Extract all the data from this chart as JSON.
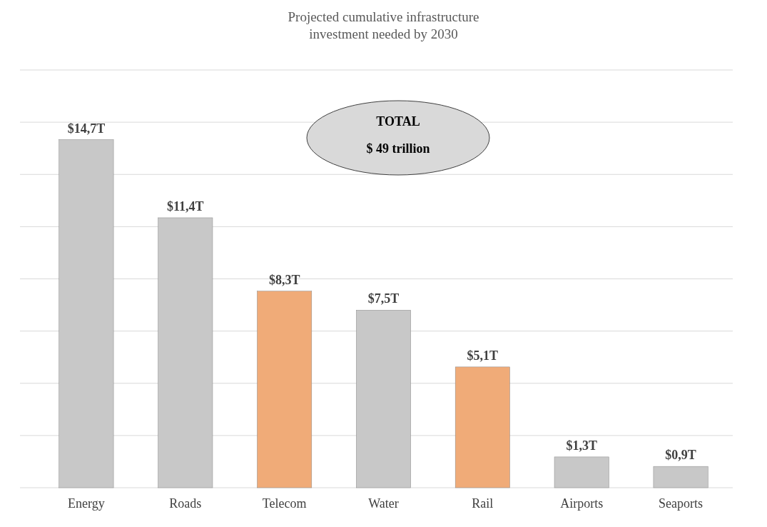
{
  "chart_data": {
    "type": "bar",
    "title": "Projected cumulative infrastructure\ninvestment needed by 2030",
    "categories": [
      "Energy",
      "Roads",
      "Telecom",
      "Water",
      "Rail",
      "Airports",
      "Seaports"
    ],
    "values": [
      14.7,
      11.4,
      8.3,
      7.5,
      5.1,
      1.3,
      0.9
    ],
    "colors": [
      "#c8c8c8",
      "#c8c8c8",
      "#f0ab78",
      "#c8c8c8",
      "#f0ab78",
      "#c8c8c8",
      "#c8c8c8"
    ],
    "value_labels": [
      "$14,7T",
      "$11,4T",
      "$8,3T",
      "$7,5T",
      "$5,1T",
      "$1,3T",
      "$0,9T"
    ],
    "annotations": [
      "TOTAL",
      "$ 49 trillion"
    ],
    "grid": true
  }
}
